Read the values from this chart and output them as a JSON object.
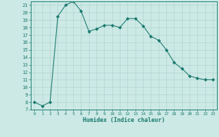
{
  "x": [
    0,
    1,
    2,
    3,
    4,
    5,
    6,
    7,
    8,
    9,
    10,
    11,
    12,
    13,
    14,
    15,
    16,
    17,
    18,
    19,
    20,
    21,
    22,
    23
  ],
  "y": [
    8,
    7.5,
    8,
    19.5,
    21,
    21.5,
    20.2,
    17.5,
    17.8,
    18.3,
    18.3,
    18,
    19.2,
    19.2,
    18.2,
    16.8,
    16.3,
    15,
    13.3,
    12.5,
    11.5,
    11.2,
    11,
    11
  ],
  "line_color": "#1a7a6e",
  "marker": "D",
  "marker_size": 2.2,
  "bg_color": "#cce9e5",
  "grid_major_color": "#b0d4d0",
  "grid_minor_color": "#c5e3df",
  "xlabel": "Humidex (Indice chaleur)",
  "ylim": [
    7,
    21.5
  ],
  "xlim": [
    -0.5,
    23.5
  ],
  "yticks": [
    7,
    8,
    9,
    10,
    11,
    12,
    13,
    14,
    15,
    16,
    17,
    18,
    19,
    20,
    21
  ],
  "xticks": [
    0,
    1,
    2,
    3,
    4,
    5,
    6,
    7,
    8,
    9,
    10,
    11,
    12,
    13,
    14,
    15,
    16,
    17,
    18,
    19,
    20,
    21,
    22,
    23
  ],
  "tick_color": "#1a7a6e",
  "label_color": "#1a7a6e",
  "spine_color": "#1a7a6e"
}
